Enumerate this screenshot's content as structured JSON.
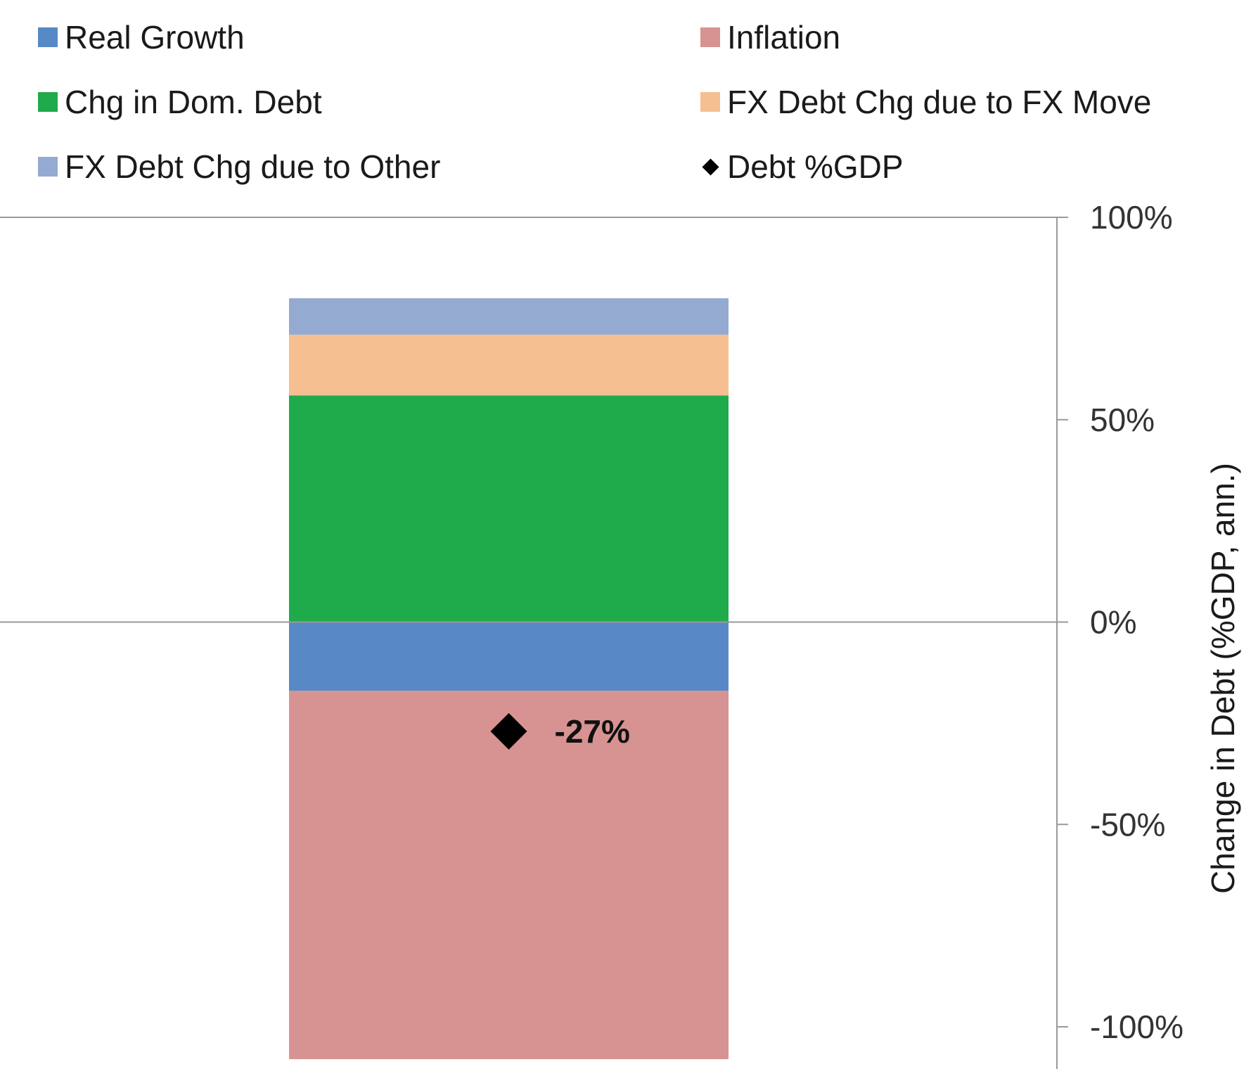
{
  "chart_data": {
    "type": "bar",
    "stacked": true,
    "categories": [
      ""
    ],
    "series": [
      {
        "name": "Real Growth",
        "color": "#5889C6",
        "values": [
          -17
        ]
      },
      {
        "name": "Inflation",
        "color": "#D79392",
        "values": [
          -91
        ]
      },
      {
        "name": "Chg in Dom. Debt",
        "color": "#1FAB4C",
        "values": [
          56
        ]
      },
      {
        "name": "FX Debt Chg due to FX Move",
        "color": "#F6BF92",
        "values": [
          15
        ]
      },
      {
        "name": "FX Debt Chg due to Other",
        "color": "#94AAD1",
        "values": [
          9
        ]
      }
    ],
    "point_series": {
      "name": "Debt %GDP",
      "color": "#000000",
      "marker": "diamond",
      "values": [
        -27
      ],
      "label": "-27%"
    },
    "ylabel": "Change in Debt (%GDP, ann.)",
    "ylim": [
      -100,
      100
    ],
    "ytick_values": [
      100,
      50,
      0,
      -50,
      -100
    ],
    "yticks": [
      "100%",
      "50%",
      "0%",
      "-50%",
      "-100%"
    ],
    "yaxis_side": "right",
    "grid": false,
    "legend_position": "top"
  }
}
